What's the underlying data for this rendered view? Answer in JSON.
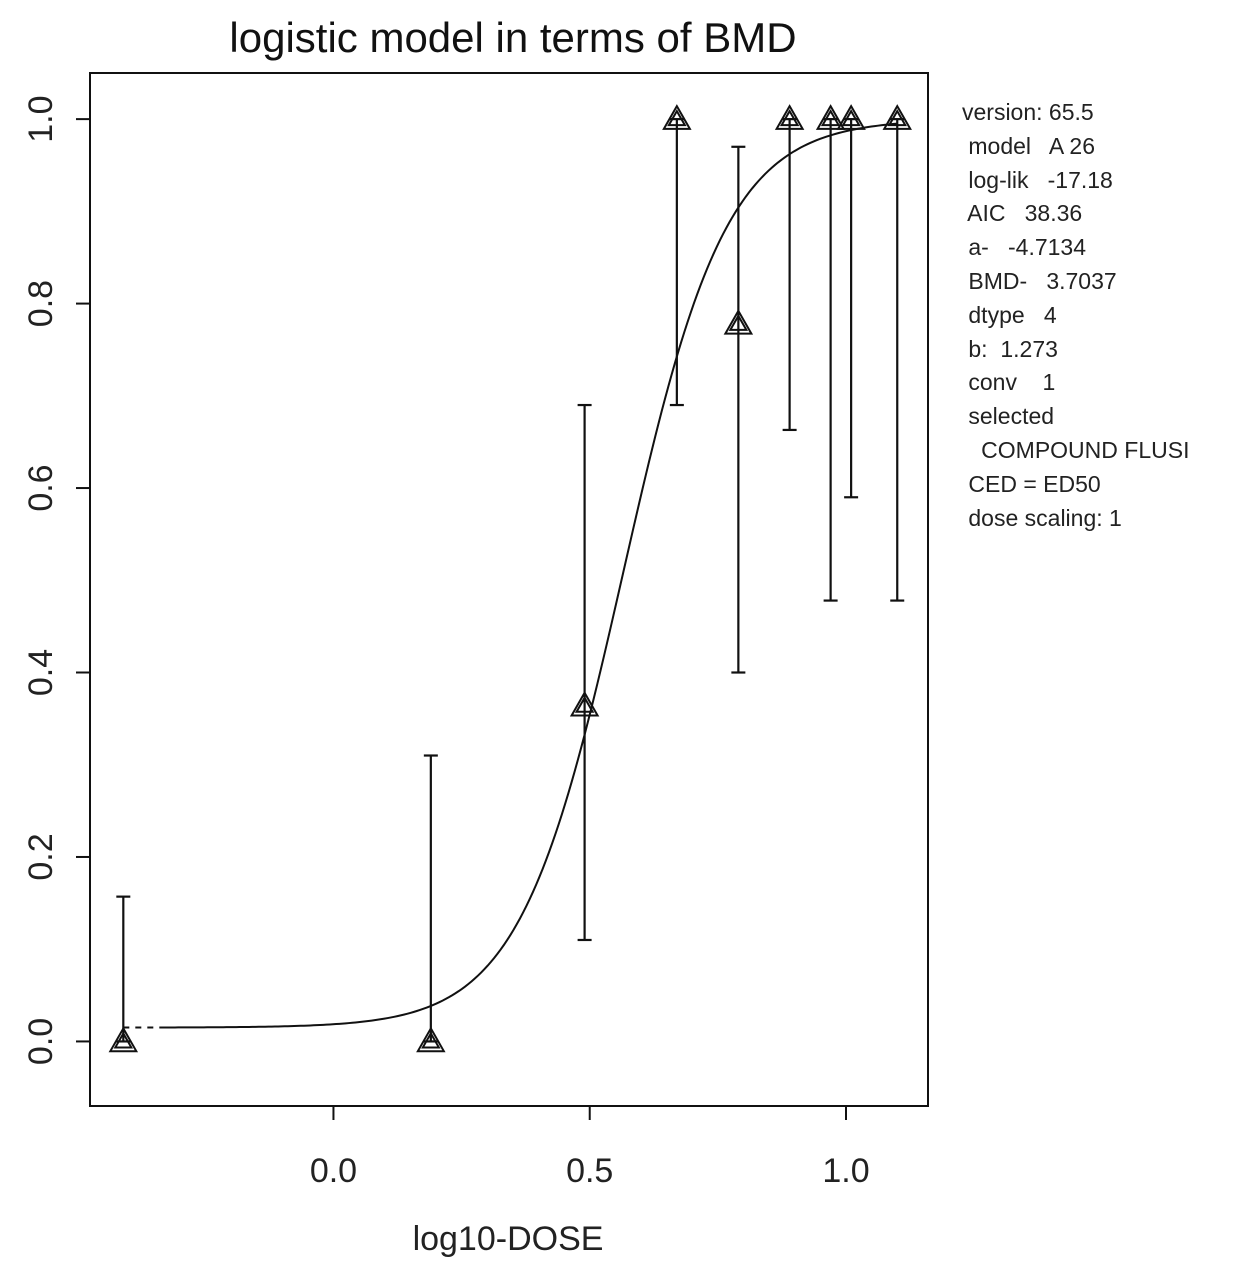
{
  "chart_data": {
    "type": "scatter",
    "title": "logistic model in terms of BMD",
    "xlabel": "log10-DOSE",
    "ylabel": "",
    "xlim": [
      -0.475,
      1.16
    ],
    "ylim": [
      -0.07,
      1.05
    ],
    "x_ticks": [
      {
        "value": 0.0,
        "label": "0.0"
      },
      {
        "value": 0.5,
        "label": "0.5"
      },
      {
        "value": 1.0,
        "label": "1.0"
      }
    ],
    "y_ticks": [
      {
        "value": 0.0,
        "label": "0.0"
      },
      {
        "value": 0.2,
        "label": "0.2"
      },
      {
        "value": 0.4,
        "label": "0.4"
      },
      {
        "value": 0.6,
        "label": "0.6"
      },
      {
        "value": 0.8,
        "label": "0.8"
      },
      {
        "value": 1.0,
        "label": "1.0"
      }
    ],
    "grid": false,
    "points": [
      {
        "x": -0.41,
        "y": 0.0,
        "lower": 0.0,
        "upper": 0.157
      },
      {
        "x": 0.19,
        "y": 0.0,
        "lower": 0.0,
        "upper": 0.31
      },
      {
        "x": 0.49,
        "y": 0.364,
        "lower": 0.11,
        "upper": 0.69
      },
      {
        "x": 0.67,
        "y": 1.0,
        "lower": 0.69,
        "upper": 1.0
      },
      {
        "x": 0.79,
        "y": 0.778,
        "lower": 0.4,
        "upper": 0.97
      },
      {
        "x": 0.89,
        "y": 1.0,
        "lower": 0.663,
        "upper": 1.0
      },
      {
        "x": 0.97,
        "y": 1.0,
        "lower": 0.478,
        "upper": 1.0
      },
      {
        "x": 1.01,
        "y": 1.0,
        "lower": 0.59,
        "upper": 1.0
      },
      {
        "x": 1.1,
        "y": 1.0,
        "lower": 0.478,
        "upper": 1.0
      }
    ],
    "fit": {
      "model": "logistic",
      "a": -4.7134,
      "BMD": 3.7037,
      "b": 1.273,
      "x_start": -0.41,
      "x_end": 1.1,
      "dashed_until": -0.33
    }
  },
  "info_panel": {
    "lines": [
      "version: 65.5",
      " model   A 26",
      " log-lik   -17.18",
      " AIC   38.36",
      " a-   -4.7134",
      " BMD-   3.7037",
      " dtype   4",
      " b:  1.273",
      " conv    1",
      " selected",
      "   COMPOUND FLUSI",
      " CED = ED50",
      " dose scaling: 1"
    ]
  }
}
